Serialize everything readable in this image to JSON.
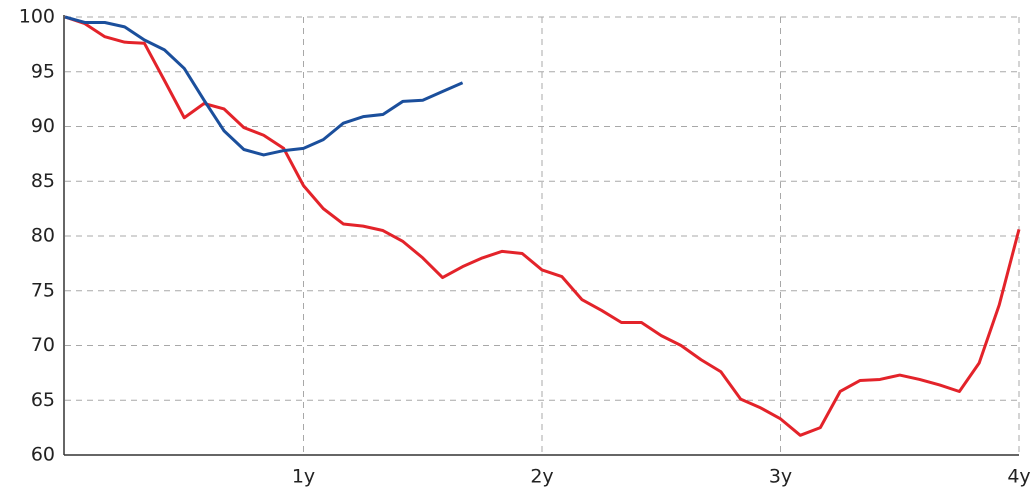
{
  "chart_data": {
    "type": "line",
    "x": [
      0,
      0.083,
      0.167,
      0.25,
      0.333,
      0.417,
      0.5,
      0.583,
      0.667,
      0.75,
      0.833,
      0.917,
      1,
      1.083,
      1.167,
      1.25,
      1.333,
      1.417,
      1.5,
      1.583,
      1.667,
      1.75,
      1.833,
      1.917,
      2,
      2.083,
      2.167,
      2.25,
      2.333,
      2.417,
      2.5,
      2.583,
      2.667,
      2.75,
      2.833,
      2.917,
      3,
      3.083,
      3.167,
      3.25,
      3.333,
      3.417,
      3.5,
      3.583,
      3.667,
      3.75,
      3.833,
      3.917,
      4
    ],
    "series": [
      {
        "color": "#e3232a",
        "values": [
          100,
          99.4,
          98.2,
          97.7,
          97.6,
          94.2,
          90.8,
          92.1,
          91.6,
          89.9,
          89.2,
          88.0,
          84.6,
          82.5,
          81.1,
          80.9,
          80.5,
          79.5,
          78.0,
          76.2,
          77.2,
          78.0,
          78.6,
          78.4,
          76.9,
          76.3,
          74.2,
          73.2,
          72.1,
          72.1,
          70.9,
          70.0,
          68.7,
          67.6,
          65.1,
          64.3,
          63.3,
          61.8,
          62.5,
          65.8,
          66.8,
          66.9,
          67.3,
          66.9,
          66.4,
          65.8,
          68.4,
          73.7,
          80.6
        ]
      },
      {
        "color": "#1b4f9c",
        "values": [
          100,
          99.5,
          99.5,
          99.1,
          97.9,
          97.0,
          95.3,
          92.4,
          89.6,
          87.9,
          87.4,
          87.8,
          88.0,
          88.8,
          90.3,
          90.9,
          91.1,
          92.3,
          92.4,
          93.2,
          94.0,
          null,
          null,
          null,
          null,
          null,
          null,
          null,
          null,
          null,
          null,
          null,
          null,
          null,
          null,
          null,
          null,
          null,
          null,
          null,
          null,
          null,
          null,
          null,
          null,
          null,
          null,
          null,
          null
        ]
      }
    ],
    "xlim": [
      0,
      4
    ],
    "xticks": [
      {
        "value": 1,
        "label": "1y"
      },
      {
        "value": 2,
        "label": "2y"
      },
      {
        "value": 3,
        "label": "3y"
      },
      {
        "value": 4,
        "label": "4y"
      }
    ],
    "ylim": [
      60,
      100
    ],
    "yticks": [
      60,
      65,
      70,
      75,
      80,
      85,
      90,
      95,
      100
    ],
    "grid": true
  }
}
